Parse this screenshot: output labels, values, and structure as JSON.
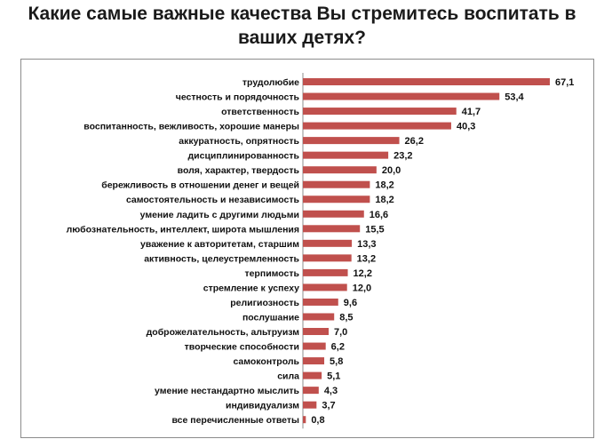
{
  "chart_data": {
    "type": "bar",
    "orientation": "horizontal",
    "title": "Какие самые важные качества Вы стремитесь воспитать в ваших детях?",
    "categories": [
      "трудолюбие",
      "честность и порядочность",
      "ответственность",
      "воспитанность, вежливость, хорошие манеры",
      "аккуратность, опрятность",
      "дисциплинированность",
      "воля, характер, твердость",
      "бережливость в отношении денег и вещей",
      "самостоятельность и независимость",
      "умение ладить с другими людьми",
      "любознательность, интеллект, широта мышления",
      "уважение к авторитетам, старшим",
      "активность, целеустремленность",
      "терпимость",
      "стремление к успеху",
      "религиозность",
      "послушание",
      "доброжелательность, альтруизм",
      "творческие способности",
      "самоконтроль",
      "сила",
      "умение нестандартно мыслить",
      "индивидуализм",
      "все перечисленные ответы"
    ],
    "values": [
      67.1,
      53.4,
      41.7,
      40.3,
      26.2,
      23.2,
      20.0,
      18.2,
      18.2,
      16.6,
      15.5,
      13.3,
      13.2,
      12.2,
      12.0,
      9.6,
      8.5,
      7.0,
      6.2,
      5.8,
      5.1,
      4.3,
      3.7,
      0.8
    ],
    "value_labels": [
      "67,1",
      "53,4",
      "41,7",
      "40,3",
      "26,2",
      "23,2",
      "20,0",
      "18,2",
      "18,2",
      "16,6",
      "15,5",
      "13,3",
      "13,2",
      "12,2",
      "12,0",
      "9,6",
      "8,5",
      "7,0",
      "6,2",
      "5,8",
      "5,1",
      "4,3",
      "3,7",
      "0,8"
    ],
    "xlim": [
      0,
      70
    ],
    "grid": false,
    "legend": "none",
    "bar_color": "#c0504d"
  }
}
